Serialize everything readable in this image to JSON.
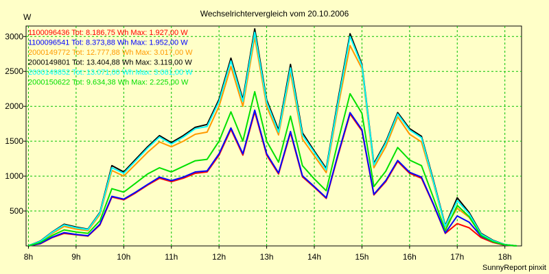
{
  "chart_data": {
    "type": "line",
    "title": "Wechselrichtervergleich vom 20.10.2006",
    "ylabel": "W",
    "footer": "SunnyReport pinxit",
    "ylim": [
      0,
      3150
    ],
    "xlim": [
      7.95,
      18.35
    ],
    "y_ticks": [
      500,
      1000,
      1500,
      2000,
      2500,
      3000
    ],
    "y_tick_labels": [
      "500",
      "1000",
      "1500",
      "2000",
      "2500",
      "3000"
    ],
    "x_ticks": [
      8,
      9,
      10,
      11,
      12,
      13,
      14,
      15,
      16,
      17,
      18
    ],
    "x_tick_labels": [
      "8h",
      "9h",
      "10h",
      "11h",
      "12h",
      "13h",
      "14h",
      "15h",
      "16h",
      "17h",
      "18h"
    ],
    "grid": true,
    "legend_position": "top-left",
    "x": [
      8.0,
      8.25,
      8.5,
      8.75,
      9.0,
      9.25,
      9.5,
      9.75,
      10.0,
      10.25,
      10.5,
      10.75,
      11.0,
      11.25,
      11.5,
      11.75,
      12.0,
      12.25,
      12.5,
      12.75,
      13.0,
      13.25,
      13.5,
      13.75,
      14.0,
      14.25,
      14.5,
      14.75,
      15.0,
      15.25,
      15.5,
      15.75,
      16.0,
      16.25,
      16.5,
      16.75,
      17.0,
      17.25,
      17.5,
      17.75,
      18.0,
      18.25
    ],
    "series": [
      {
        "name": "1100096436 Tot: 8.186,75 Wh Max: 1.927,00 W",
        "color": "#ff0000",
        "values": [
          0,
          30,
          120,
          180,
          160,
          140,
          300,
          700,
          660,
          760,
          870,
          970,
          920,
          970,
          1040,
          1060,
          1300,
          1670,
          1300,
          1920,
          1300,
          1030,
          1620,
          990,
          840,
          680,
          1300,
          1890,
          1650,
          730,
          920,
          1210,
          1040,
          970,
          590,
          180,
          320,
          260,
          120,
          50,
          10,
          0
        ]
      },
      {
        "name": "1100096541 Tot: 8.373,88 Wh Max: 1.952,00 W",
        "color": "#0000ff",
        "values": [
          0,
          35,
          125,
          190,
          165,
          145,
          310,
          710,
          670,
          770,
          880,
          985,
          935,
          985,
          1060,
          1075,
          1320,
          1690,
          1320,
          1945,
          1320,
          1045,
          1640,
          1005,
          850,
          690,
          1320,
          1910,
          1665,
          740,
          935,
          1225,
          1055,
          985,
          600,
          185,
          430,
          340,
          140,
          60,
          12,
          0
        ]
      },
      {
        "name": "2000149772 Tot: 12.777,88 Wh Max: 3.017,00 W",
        "color": "#ff9900",
        "values": [
          5,
          60,
          180,
          280,
          240,
          220,
          450,
          1080,
          1000,
          1170,
          1340,
          1490,
          1420,
          1500,
          1600,
          1630,
          2000,
          2570,
          2000,
          2990,
          2000,
          1590,
          2490,
          1530,
          1290,
          1050,
          2000,
          2870,
          2540,
          1120,
          1420,
          1850,
          1600,
          1490,
          900,
          270,
          540,
          410,
          160,
          70,
          20,
          0
        ]
      },
      {
        "name": "2000149801 Tot: 13.404,88 Wh Max: 3.119,00 W",
        "color": "#000000",
        "values": [
          5,
          70,
          200,
          310,
          270,
          240,
          480,
          1150,
          1060,
          1240,
          1420,
          1580,
          1480,
          1580,
          1700,
          1740,
          2100,
          2690,
          2100,
          3110,
          2090,
          1660,
          2600,
          1620,
          1360,
          1110,
          2100,
          3040,
          2600,
          1180,
          1490,
          1910,
          1680,
          1570,
          940,
          290,
          690,
          480,
          180,
          80,
          20,
          0
        ]
      },
      {
        "name": "2000149852 Tot: 13.071,00 Wh Max: 3.061,00 W",
        "color": "#00ffff",
        "values": [
          5,
          65,
          195,
          300,
          260,
          235,
          470,
          1120,
          1040,
          1220,
          1400,
          1560,
          1460,
          1560,
          1680,
          1710,
          2070,
          2650,
          2070,
          3060,
          2060,
          1630,
          2550,
          1590,
          1340,
          1090,
          2060,
          3000,
          2580,
          1160,
          1470,
          1890,
          1660,
          1550,
          920,
          280,
          650,
          460,
          170,
          75,
          20,
          0
        ]
      },
      {
        "name": "2000150622 Tot: 9.634,38 Wh Max: 2.225,00 W",
        "color": "#00e000",
        "values": [
          0,
          50,
          150,
          230,
          200,
          180,
          360,
          820,
          770,
          900,
          1030,
          1120,
          1060,
          1140,
          1220,
          1240,
          1500,
          1920,
          1500,
          2210,
          1500,
          1200,
          1860,
          1150,
          960,
          790,
          1500,
          2180,
          1900,
          850,
          1070,
          1410,
          1230,
          1150,
          690,
          220,
          580,
          420,
          150,
          60,
          15,
          0
        ]
      }
    ]
  }
}
